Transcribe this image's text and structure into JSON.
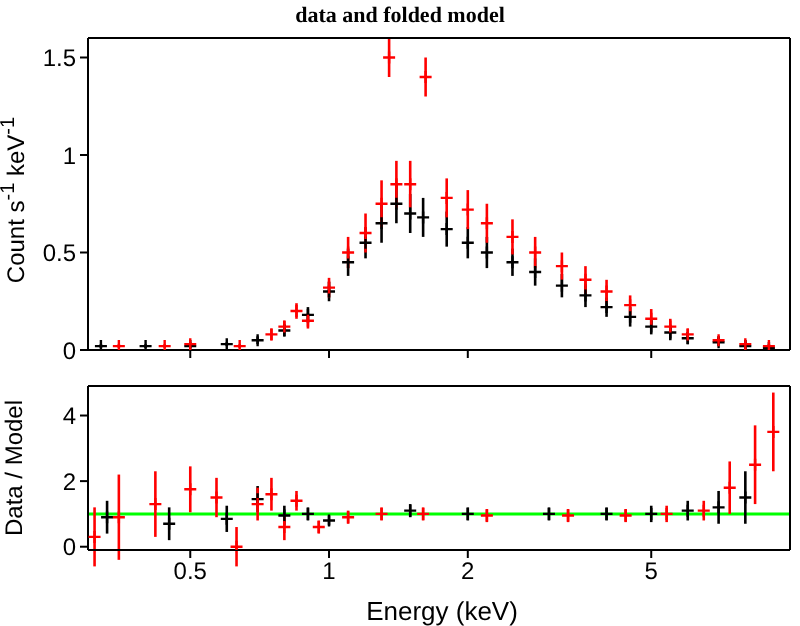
{
  "chart_data": [
    {
      "type": "scatter",
      "title": "data and folded model",
      "ylabel": "Count s$^{-1}$ keV$^{-1}$",
      "marker": "cross",
      "log": "x",
      "tick_labels": "y",
      "xlim": [
        0.3,
        10
      ],
      "xticks": [
        {
          "value": 0.5,
          "label": null
        },
        {
          "value": 1,
          "label": null
        },
        {
          "value": 2,
          "label": null
        },
        {
          "value": 5,
          "label": null
        }
      ],
      "ylim": [
        0,
        1.6
      ],
      "yticks": [
        0,
        0.5,
        1,
        1.5
      ],
      "series": [
        {
          "color": "#000000",
          "x": [
            0.32,
            0.4,
            0.5,
            0.6,
            0.7,
            0.8,
            0.9,
            1.0,
            1.1,
            1.2,
            1.3,
            1.4,
            1.5,
            1.6,
            1.8,
            2.0,
            2.2,
            2.5,
            2.8,
            3.2,
            3.6,
            4.0,
            4.5,
            5.0,
            5.5,
            6.0,
            7.0,
            8.0,
            9.0
          ],
          "values": [
            0.02,
            0.02,
            0.02,
            0.03,
            0.05,
            0.1,
            0.18,
            0.3,
            0.45,
            0.55,
            0.65,
            0.75,
            0.7,
            0.68,
            0.62,
            0.55,
            0.5,
            0.45,
            0.4,
            0.33,
            0.28,
            0.22,
            0.17,
            0.12,
            0.09,
            0.06,
            0.04,
            0.02,
            0.01
          ],
          "errors": [
            0.01,
            0.01,
            0.01,
            0.01,
            0.02,
            0.03,
            0.04,
            0.05,
            0.07,
            0.08,
            0.1,
            0.1,
            0.1,
            0.1,
            0.09,
            0.08,
            0.08,
            0.07,
            0.07,
            0.06,
            0.06,
            0.05,
            0.05,
            0.04,
            0.04,
            0.03,
            0.02,
            0.02,
            0.01
          ]
        },
        {
          "color": "#ff0000",
          "x": [
            0.35,
            0.44,
            0.5,
            0.64,
            0.75,
            0.8,
            0.85,
            0.9,
            1.0,
            1.1,
            1.2,
            1.3,
            1.35,
            1.4,
            1.5,
            1.62,
            1.8,
            2.0,
            2.2,
            2.5,
            2.8,
            3.2,
            3.6,
            4.0,
            4.5,
            5.0,
            5.5,
            6.0,
            7.0,
            8.0,
            9.0
          ],
          "values": [
            0.02,
            0.02,
            0.03,
            0.02,
            0.08,
            0.12,
            0.2,
            0.15,
            0.32,
            0.5,
            0.6,
            0.75,
            1.5,
            0.85,
            0.85,
            1.4,
            0.78,
            0.72,
            0.65,
            0.58,
            0.5,
            0.43,
            0.36,
            0.3,
            0.23,
            0.16,
            0.12,
            0.08,
            0.05,
            0.03,
            0.02
          ],
          "errors": [
            0.01,
            0.01,
            0.01,
            0.01,
            0.03,
            0.03,
            0.04,
            0.04,
            0.05,
            0.08,
            0.1,
            0.12,
            0.1,
            0.12,
            0.12,
            0.1,
            0.1,
            0.1,
            0.1,
            0.09,
            0.08,
            0.07,
            0.07,
            0.06,
            0.05,
            0.05,
            0.04,
            0.03,
            0.02,
            0.02,
            0.01
          ]
        }
      ]
    },
    {
      "type": "scatter",
      "xlabel": "Energy (keV)",
      "ylabel": "Data / Model",
      "marker": "cross",
      "log": "x",
      "xlim": [
        0.3,
        10
      ],
      "xticks": [
        0.5,
        1,
        2,
        5
      ],
      "ylim": [
        -0.1,
        4.9
      ],
      "yticks": [
        0,
        2,
        4
      ],
      "ref_lines": [
        {
          "axis": "y",
          "value": 1,
          "color": "#00ff00"
        }
      ],
      "series": [
        {
          "color": "#000000",
          "x": [
            0.33,
            0.45,
            0.6,
            0.7,
            0.8,
            0.9,
            1.0,
            1.5,
            2.0,
            3.0,
            4.0,
            5.0,
            6.0,
            7.0,
            8.0
          ],
          "values": [
            0.9,
            0.7,
            0.85,
            1.45,
            0.95,
            1.0,
            0.8,
            1.1,
            1.0,
            1.0,
            1.0,
            1.0,
            1.1,
            1.2,
            1.5
          ],
          "errors": [
            0.5,
            0.5,
            0.4,
            0.4,
            0.3,
            0.2,
            0.15,
            0.2,
            0.2,
            0.2,
            0.2,
            0.25,
            0.3,
            0.5,
            0.8
          ]
        },
        {
          "color": "#ff0000",
          "x": [
            0.31,
            0.35,
            0.42,
            0.5,
            0.57,
            0.63,
            0.7,
            0.75,
            0.8,
            0.85,
            0.95,
            1.1,
            1.3,
            1.6,
            2.2,
            3.3,
            4.4,
            5.4,
            6.5,
            7.4,
            8.4,
            9.2
          ],
          "values": [
            0.3,
            0.9,
            1.3,
            1.75,
            1.5,
            0.0,
            1.3,
            1.6,
            0.6,
            1.4,
            0.6,
            0.9,
            1.0,
            1.0,
            0.95,
            0.95,
            0.95,
            1.0,
            1.1,
            1.8,
            2.5,
            3.5
          ],
          "errors": [
            0.9,
            1.3,
            1.0,
            0.7,
            0.6,
            0.6,
            0.5,
            0.5,
            0.4,
            0.3,
            0.2,
            0.2,
            0.2,
            0.2,
            0.2,
            0.2,
            0.2,
            0.25,
            0.3,
            0.8,
            1.2,
            1.2
          ]
        }
      ]
    }
  ]
}
